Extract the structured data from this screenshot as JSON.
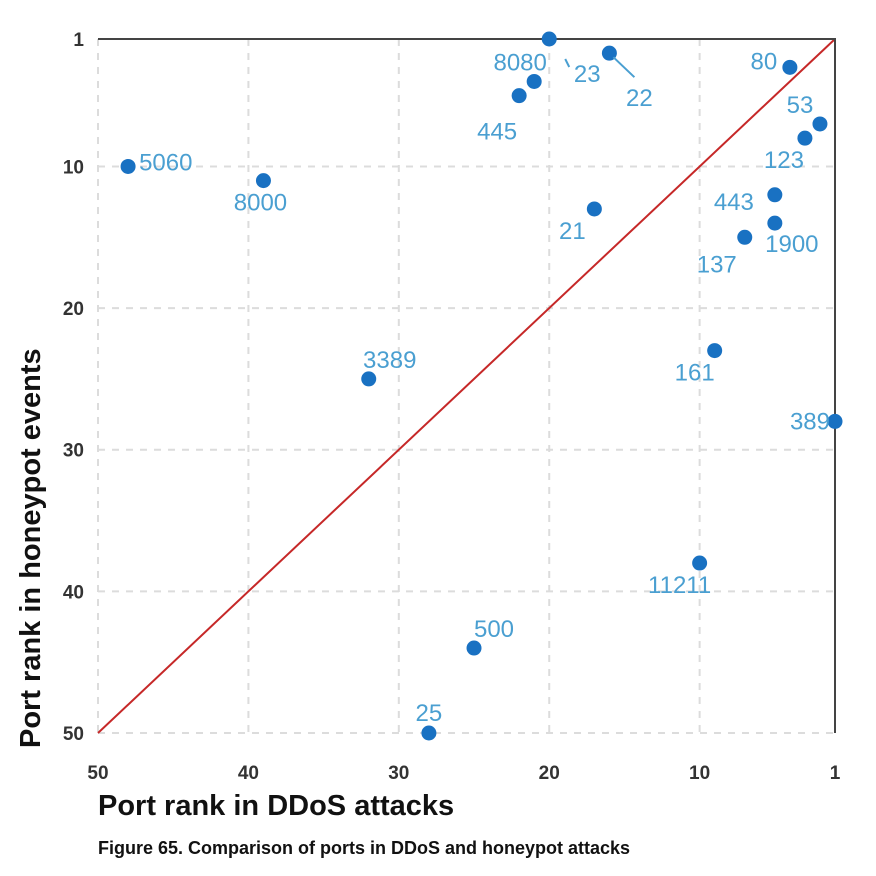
{
  "caption": "Figure 65. Comparison of ports in DDoS and honeypot attacks",
  "colors": {
    "point": "#1971c2",
    "label": "#4a9fd1",
    "diagonal": "#c62828"
  },
  "chart_data": {
    "type": "scatter",
    "xlabel": "Port rank in DDoS attacks",
    "ylabel": "Port rank in honeypot events",
    "xlim": [
      50,
      1
    ],
    "ylim": [
      1,
      50
    ],
    "x_reversed": true,
    "y_reversed": true,
    "xticks": [
      50,
      40,
      30,
      20,
      10,
      1
    ],
    "yticks": [
      1,
      10,
      20,
      30,
      40,
      50
    ],
    "grid": true,
    "reference_line": "diagonal (equal rank)",
    "points": [
      {
        "label": "5060",
        "x": 48,
        "y": 10
      },
      {
        "label": "8000",
        "x": 39,
        "y": 11
      },
      {
        "label": "8080",
        "x": 21,
        "y": 4
      },
      {
        "label": "445",
        "x": 22,
        "y": 5
      },
      {
        "label": "23",
        "x": 20,
        "y": 1
      },
      {
        "label": "22",
        "x": 16,
        "y": 2
      },
      {
        "label": "80",
        "x": 4,
        "y": 3
      },
      {
        "label": "53",
        "x": 2,
        "y": 7
      },
      {
        "label": "123",
        "x": 3,
        "y": 8
      },
      {
        "label": "443",
        "x": 5,
        "y": 12
      },
      {
        "label": "21",
        "x": 17,
        "y": 13
      },
      {
        "label": "1900",
        "x": 5,
        "y": 14
      },
      {
        "label": "137",
        "x": 7,
        "y": 15
      },
      {
        "label": "3389",
        "x": 32,
        "y": 25
      },
      {
        "label": "161",
        "x": 9,
        "y": 23
      },
      {
        "label": "389",
        "x": 1,
        "y": 28
      },
      {
        "label": "11211",
        "x": 10,
        "y": 38
      },
      {
        "label": "500",
        "x": 25,
        "y": 44
      },
      {
        "label": "25",
        "x": 28,
        "y": 50
      }
    ]
  }
}
